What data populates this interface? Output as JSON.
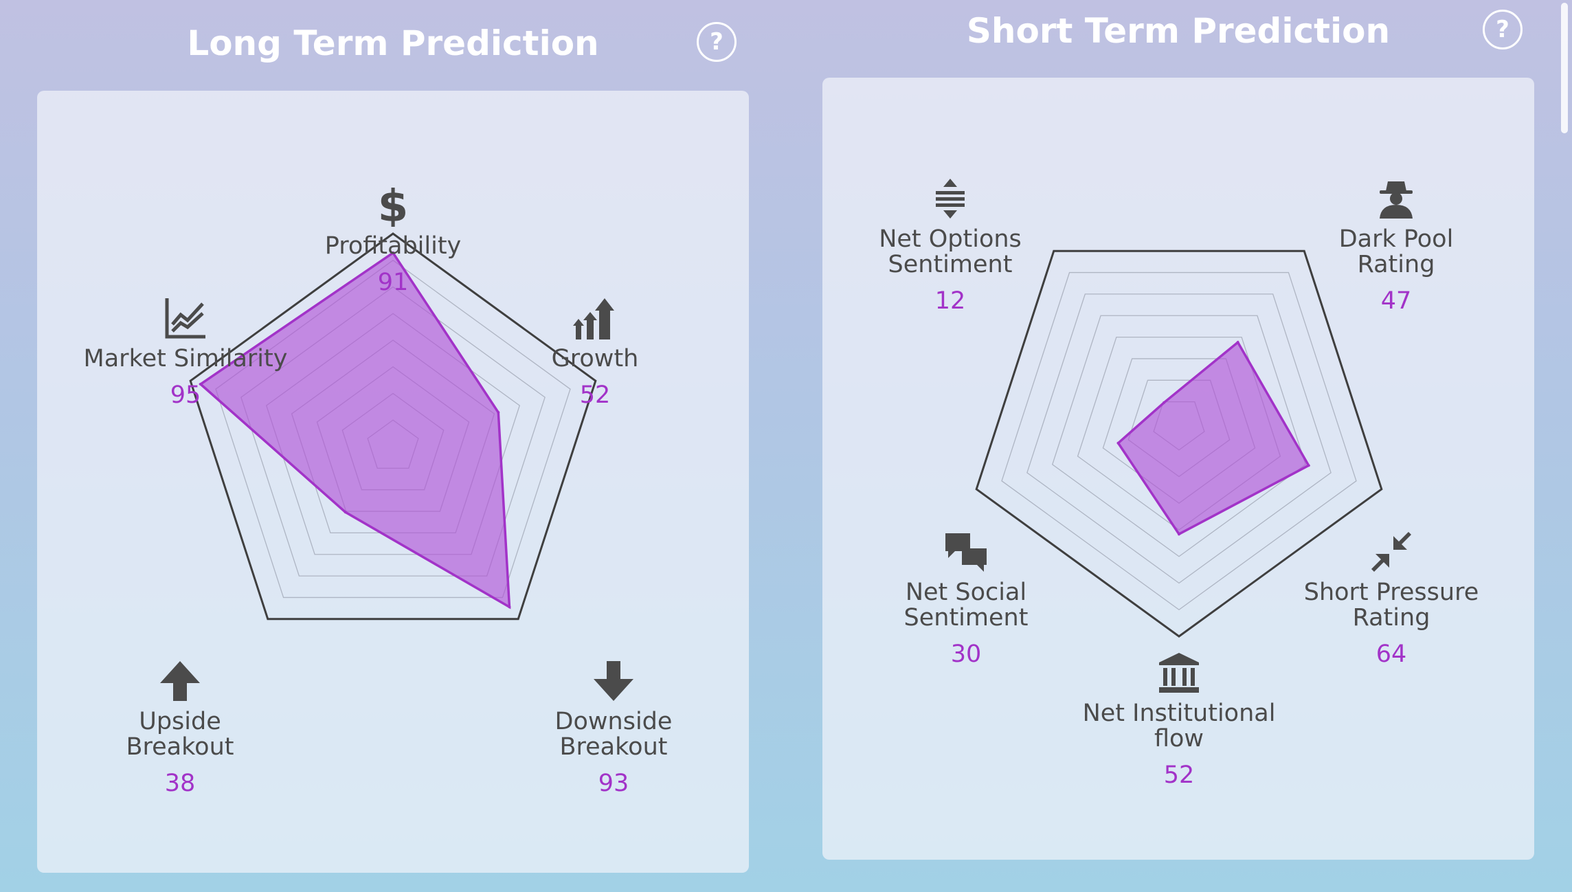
{
  "long_term": {
    "title": "Long Term Prediction",
    "help_label": "?"
  },
  "short_term": {
    "title": "Short Term Prediction",
    "help_label": "?"
  },
  "colors": {
    "accent": "#a233c8",
    "fill": "#b04fd6",
    "outline": "#3f3f3f",
    "grid": "#9a9fae",
    "icon": "#4b4b4b"
  },
  "chart_data": [
    {
      "type": "radar",
      "title": "Long Term Prediction",
      "range": [
        0,
        100
      ],
      "categories": [
        "Profitability",
        "Growth",
        "Downside Breakout",
        "Upside Breakout",
        "Market Similarity"
      ],
      "labels": [
        "Profitability",
        "Growth",
        "Downside\nBreakout",
        "Upside\nBreakout",
        "Market Similarity"
      ],
      "values": [
        91,
        52,
        93,
        38,
        95
      ],
      "value_labels": [
        "91",
        "52",
        "93",
        "38",
        "95"
      ],
      "icons": [
        "dollar-icon",
        "growth-arrows-icon",
        "down-arrow-icon",
        "up-arrow-icon",
        "line-chart-icon"
      ]
    },
    {
      "type": "radar",
      "title": "Short Term Prediction",
      "range": [
        0,
        100
      ],
      "categories": [
        "Dark Pool Rating",
        "Short Pressure Rating",
        "Net Institutional flow",
        "Net Social Sentiment",
        "Net Options Sentiment"
      ],
      "labels": [
        "Dark Pool\nRating",
        "Short Pressure\nRating",
        "Net Institutional\nflow",
        "Net Social\nSentiment",
        "Net Options\nSentiment"
      ],
      "values": [
        47,
        64,
        52,
        30,
        12
      ],
      "value_labels": [
        "47",
        "64",
        "52",
        "30",
        "12"
      ],
      "icons": [
        "spy-icon",
        "compress-arrows-icon",
        "bank-icon",
        "chat-bubbles-icon",
        "vertical-arrows-icon"
      ]
    }
  ]
}
